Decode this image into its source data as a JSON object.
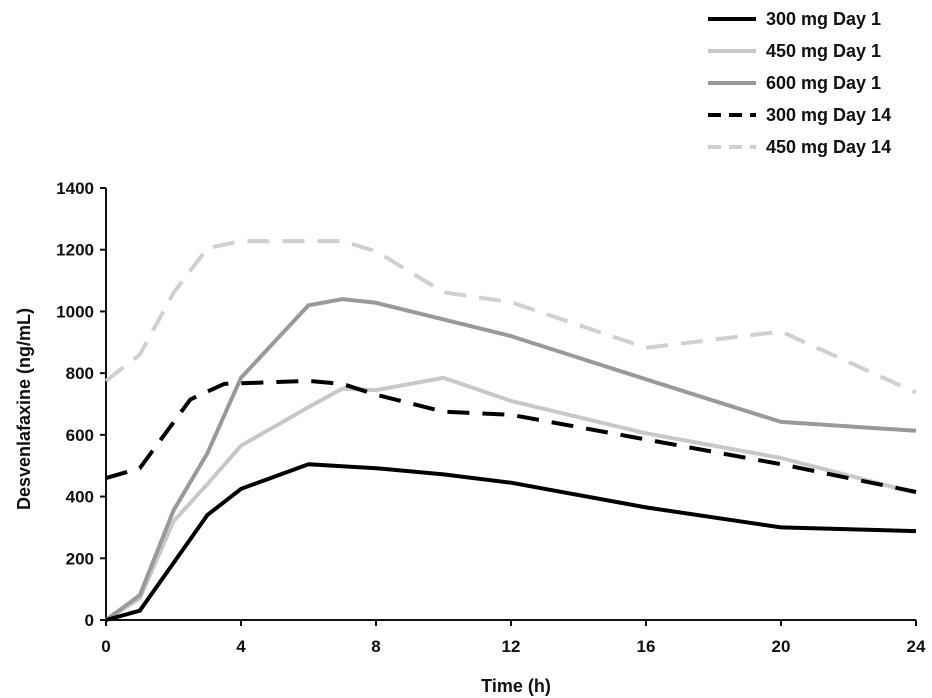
{
  "chart_data": {
    "type": "line",
    "xlabel": "Time (h)",
    "ylabel": "Desvenlafaxine (ng/mL)",
    "xlim": [
      0,
      24
    ],
    "ylim": [
      0,
      1400
    ],
    "xticks": [
      0,
      4,
      8,
      12,
      16,
      20,
      24
    ],
    "yticks": [
      0,
      200,
      400,
      600,
      800,
      1000,
      1200,
      1400
    ],
    "grid": false,
    "legend_position": "top-right",
    "series": [
      {
        "name": "300 mg Day 1",
        "color": "#000000",
        "dash": "solid",
        "points": [
          [
            0,
            0
          ],
          [
            1,
            30
          ],
          [
            3,
            340
          ],
          [
            4,
            425
          ],
          [
            6,
            505
          ],
          [
            8,
            492
          ],
          [
            10,
            472
          ],
          [
            12,
            445
          ],
          [
            16,
            365
          ],
          [
            20,
            300
          ],
          [
            24,
            288
          ]
        ]
      },
      {
        "name": "450 mg Day 1",
        "color": "#c8c8c8",
        "dash": "solid",
        "points": [
          [
            0,
            0
          ],
          [
            1,
            70
          ],
          [
            2,
            320
          ],
          [
            3,
            440
          ],
          [
            4,
            565
          ],
          [
            6,
            690
          ],
          [
            7,
            750
          ],
          [
            8,
            745
          ],
          [
            10,
            785
          ],
          [
            12,
            710
          ],
          [
            16,
            605
          ],
          [
            20,
            525
          ],
          [
            24,
            412
          ]
        ]
      },
      {
        "name": "600 mg Day 1",
        "color": "#999999",
        "dash": "solid",
        "points": [
          [
            0,
            0
          ],
          [
            1,
            80
          ],
          [
            2,
            355
          ],
          [
            3,
            540
          ],
          [
            4,
            785
          ],
          [
            6,
            1020
          ],
          [
            7,
            1040
          ],
          [
            8,
            1028
          ],
          [
            12,
            920
          ],
          [
            16,
            780
          ],
          [
            20,
            642
          ],
          [
            24,
            613
          ]
        ]
      },
      {
        "name": "300 mg Day 14",
        "color": "#000000",
        "dash": "dashed",
        "points": [
          [
            0,
            460
          ],
          [
            1,
            492
          ],
          [
            2.5,
            715
          ],
          [
            3.5,
            765
          ],
          [
            6,
            775
          ],
          [
            7,
            765
          ],
          [
            8,
            730
          ],
          [
            10,
            675
          ],
          [
            12,
            665
          ],
          [
            16,
            585
          ],
          [
            20,
            505
          ],
          [
            24,
            415
          ]
        ]
      },
      {
        "name": "450 mg Day 14",
        "color": "#d0d0d0",
        "dash": "dashed",
        "points": [
          [
            0,
            775
          ],
          [
            1,
            860
          ],
          [
            2,
            1060
          ],
          [
            3,
            1205
          ],
          [
            4,
            1228
          ],
          [
            7,
            1228
          ],
          [
            8,
            1195
          ],
          [
            10,
            1062
          ],
          [
            12,
            1030
          ],
          [
            16,
            882
          ],
          [
            20,
            935
          ],
          [
            24,
            737
          ]
        ]
      }
    ]
  }
}
